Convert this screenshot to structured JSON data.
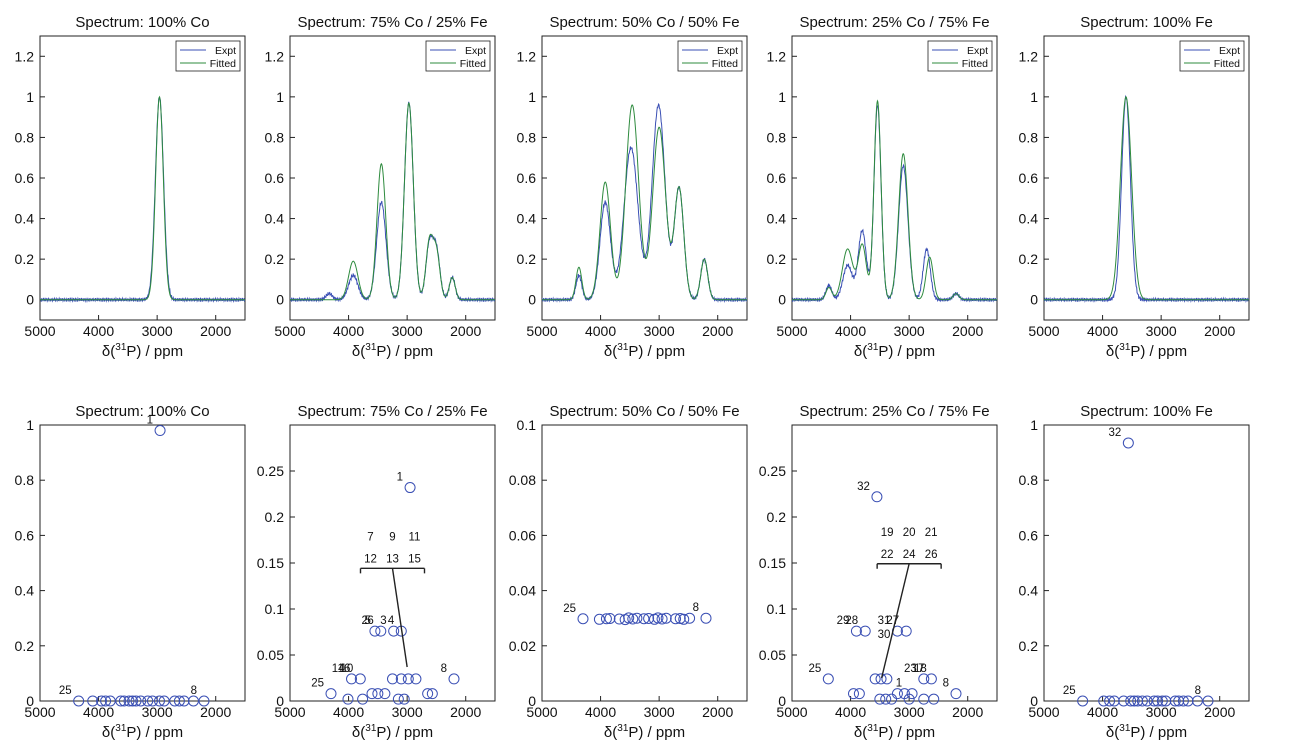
{
  "xlabel": {
    "pre": "δ(",
    "sup": "31",
    "post": "P) / ppm"
  },
  "chart_data": [
    {
      "type": "line",
      "title": "Spectrum: 100% Co",
      "xlim": [
        5000,
        1500
      ],
      "ylim": [
        -0.1,
        1.3
      ],
      "xticks": [
        5000,
        4000,
        3000,
        2000
      ],
      "yticks": [
        0,
        0.2,
        0.4,
        0.6,
        0.8,
        1,
        1.2
      ],
      "legend": [
        "Expt",
        "Fitted"
      ],
      "legend_position": "top-right",
      "series": [
        {
          "name": "Expt",
          "color": "#3a4fb4",
          "peaks": [
            [
              2960,
              1.0,
              70
            ]
          ]
        },
        {
          "name": "Fitted",
          "color": "#2e8b3e",
          "peaks": [
            [
              2960,
              1.0,
              66
            ]
          ]
        }
      ]
    },
    {
      "type": "line",
      "title": "Spectrum: 75% Co / 25% Fe",
      "xlim": [
        5000,
        1500
      ],
      "ylim": [
        -0.1,
        1.3
      ],
      "xticks": [
        5000,
        4000,
        3000,
        2000
      ],
      "yticks": [
        0,
        0.2,
        0.4,
        0.6,
        0.8,
        1,
        1.2
      ],
      "legend": [
        "Expt",
        "Fitted"
      ],
      "legend_position": "top-right",
      "series": [
        {
          "name": "Expt",
          "color": "#3a4fb4",
          "peaks": [
            [
              4330,
              0.03,
              55
            ],
            [
              3920,
              0.12,
              80
            ],
            [
              3440,
              0.48,
              80
            ],
            [
              2970,
              0.97,
              75
            ],
            [
              2620,
              0.27,
              60
            ],
            [
              2500,
              0.24,
              60
            ],
            [
              2230,
              0.11,
              50
            ]
          ]
        },
        {
          "name": "Fitted",
          "color": "#2e8b3e",
          "peaks": [
            [
              3920,
              0.19,
              80
            ],
            [
              3440,
              0.67,
              75
            ],
            [
              2970,
              0.97,
              75
            ],
            [
              2620,
              0.28,
              60
            ],
            [
              2500,
              0.23,
              60
            ],
            [
              2230,
              0.11,
              50
            ]
          ]
        }
      ]
    },
    {
      "type": "line",
      "title": "Spectrum: 50% Co / 50% Fe",
      "xlim": [
        5000,
        1500
      ],
      "ylim": [
        -0.1,
        1.3
      ],
      "xticks": [
        5000,
        4000,
        3000,
        2000
      ],
      "yticks": [
        0,
        0.2,
        0.4,
        0.6,
        0.8,
        1,
        1.2
      ],
      "legend": [
        "Expt",
        "Fitted"
      ],
      "legend_position": "top-right",
      "series": [
        {
          "name": "Expt",
          "color": "#3a4fb4",
          "peaks": [
            [
              4370,
              0.12,
              50
            ],
            [
              3920,
              0.48,
              90
            ],
            [
              3480,
              0.75,
              120
            ],
            [
              3010,
              0.96,
              110
            ],
            [
              2660,
              0.55,
              80
            ],
            [
              2230,
              0.2,
              60
            ]
          ]
        },
        {
          "name": "Fitted",
          "color": "#2e8b3e",
          "peaks": [
            [
              4370,
              0.16,
              50
            ],
            [
              3920,
              0.58,
              90
            ],
            [
              3460,
              0.96,
              110
            ],
            [
              3000,
              0.85,
              110
            ],
            [
              2660,
              0.55,
              80
            ],
            [
              2230,
              0.2,
              60
            ]
          ]
        }
      ]
    },
    {
      "type": "line",
      "title": "Spectrum: 25% Co / 75% Fe",
      "xlim": [
        5000,
        1500
      ],
      "ylim": [
        -0.1,
        1.3
      ],
      "xticks": [
        5000,
        4000,
        3000,
        2000
      ],
      "yticks": [
        0,
        0.2,
        0.4,
        0.6,
        0.8,
        1,
        1.2
      ],
      "legend": [
        "Expt",
        "Fitted"
      ],
      "legend_position": "top-right",
      "series": [
        {
          "name": "Expt",
          "color": "#3a4fb4",
          "peaks": [
            [
              4370,
              0.07,
              50
            ],
            [
              4050,
              0.17,
              80
            ],
            [
              3800,
              0.34,
              70
            ],
            [
              3540,
              0.96,
              60
            ],
            [
              3100,
              0.66,
              80
            ],
            [
              2700,
              0.25,
              60
            ],
            [
              2200,
              0.03,
              50
            ]
          ]
        },
        {
          "name": "Fitted",
          "color": "#2e8b3e",
          "peaks": [
            [
              4370,
              0.06,
              50
            ],
            [
              4050,
              0.25,
              90
            ],
            [
              3800,
              0.27,
              70
            ],
            [
              3540,
              0.98,
              60
            ],
            [
              3100,
              0.72,
              80
            ],
            [
              2650,
              0.21,
              60
            ],
            [
              2200,
              0.03,
              50
            ]
          ]
        }
      ]
    },
    {
      "type": "line",
      "title": "Spectrum: 100% Fe",
      "xlim": [
        5000,
        1500
      ],
      "ylim": [
        -0.1,
        1.3
      ],
      "xticks": [
        5000,
        4000,
        3000,
        2000
      ],
      "yticks": [
        0,
        0.2,
        0.4,
        0.6,
        0.8,
        1,
        1.2
      ],
      "legend": [
        "Expt",
        "Fitted"
      ],
      "legend_position": "top-right",
      "series": [
        {
          "name": "Expt",
          "color": "#3a4fb4",
          "peaks": [
            [
              3600,
              1.0,
              75
            ]
          ]
        },
        {
          "name": "Fitted",
          "color": "#2e8b3e",
          "peaks": [
            [
              3600,
              1.0,
              95
            ]
          ]
        }
      ]
    },
    {
      "type": "scatter",
      "title": "Spectrum: 100% Co",
      "xlim": [
        5000,
        1500
      ],
      "ylim": [
        0,
        1
      ],
      "xticks": [
        5000,
        4000,
        3000,
        2000
      ],
      "yticks": [
        0,
        0.2,
        0.4,
        0.6,
        0.8,
        1
      ],
      "points": [
        [
          4340,
          0
        ],
        [
          4100,
          0
        ],
        [
          3950,
          0
        ],
        [
          3880,
          0
        ],
        [
          3800,
          0
        ],
        [
          3620,
          0
        ],
        [
          3560,
          0
        ],
        [
          3480,
          0
        ],
        [
          3420,
          0
        ],
        [
          3360,
          0
        ],
        [
          3280,
          0
        ],
        [
          3160,
          0
        ],
        [
          3080,
          0
        ],
        [
          2960,
          0
        ],
        [
          2880,
          0
        ],
        [
          2700,
          0
        ],
        [
          2620,
          0
        ],
        [
          2540,
          0
        ],
        [
          2380,
          0
        ],
        [
          2200,
          0
        ],
        [
          2950,
          0.98
        ]
      ],
      "labels": [
        {
          "text": "25",
          "x": 4340,
          "y": 0
        },
        {
          "text": "8",
          "x": 2200,
          "y": 0
        },
        {
          "text": "1",
          "x": 2950,
          "y": 0.98
        }
      ]
    },
    {
      "type": "scatter",
      "title": "Spectrum: 75% Co / 25% Fe",
      "xlim": [
        5000,
        1500
      ],
      "ylim": [
        0,
        0.3
      ],
      "xticks": [
        5000,
        4000,
        3000,
        2000
      ],
      "yticks": [
        0,
        0.05,
        0.1,
        0.15,
        0.2,
        0.25
      ],
      "points": [
        [
          4300,
          0.008
        ],
        [
          4010,
          0.002
        ],
        [
          3950,
          0.024
        ],
        [
          3800,
          0.024
        ],
        [
          3760,
          0.002
        ],
        [
          3550,
          0.076
        ],
        [
          3450,
          0.076
        ],
        [
          3230,
          0.076
        ],
        [
          3100,
          0.076
        ],
        [
          2950,
          0.232
        ],
        [
          3600,
          0.008
        ],
        [
          3500,
          0.008
        ],
        [
          3380,
          0.008
        ],
        [
          3150,
          0.002
        ],
        [
          3050,
          0.002
        ],
        [
          3250,
          0.024
        ],
        [
          3100,
          0.024
        ],
        [
          2980,
          0.024
        ],
        [
          2850,
          0.024
        ],
        [
          2650,
          0.008
        ],
        [
          2570,
          0.008
        ],
        [
          2200,
          0.024
        ]
      ],
      "labels": [
        {
          "text": "25",
          "x": 4300,
          "y": 0.008
        },
        {
          "text": "14",
          "x": 3950,
          "y": 0.024
        },
        {
          "text": "16",
          "x": 3850,
          "y": 0.024
        },
        {
          "text": "10",
          "x": 3800,
          "y": 0.024
        },
        {
          "text": "2",
          "x": 3550,
          "y": 0.076
        },
        {
          "text": "5",
          "x": 3500,
          "y": 0.076
        },
        {
          "text": "6",
          "x": 3450,
          "y": 0.076
        },
        {
          "text": "3",
          "x": 3230,
          "y": 0.076
        },
        {
          "text": "4",
          "x": 3100,
          "y": 0.076
        },
        {
          "text": "1",
          "x": 2950,
          "y": 0.232
        },
        {
          "text": "8",
          "x": 2200,
          "y": 0.024
        }
      ],
      "groups": [
        {
          "rows": [
            [
              "7",
              "9",
              "11"
            ],
            [
              "12",
              "13",
              "15"
            ]
          ],
          "anchor": {
            "x": 3250,
            "y": 0.142
          },
          "target": {
            "x": 3000,
            "y": 0.037
          }
        }
      ]
    },
    {
      "type": "scatter",
      "title": "Spectrum: 50% Co / 50% Fe",
      "xlim": [
        5000,
        1500
      ],
      "ylim": [
        0,
        0.1
      ],
      "xticks": [
        5000,
        4000,
        3000,
        2000
      ],
      "yticks": [
        0,
        0.02,
        0.04,
        0.06,
        0.08,
        0.1
      ],
      "points": [
        [
          4300,
          0.0298
        ],
        [
          4020,
          0.0296
        ],
        [
          3900,
          0.0298
        ],
        [
          3840,
          0.0299
        ],
        [
          3680,
          0.0297
        ],
        [
          3580,
          0.0295
        ],
        [
          3520,
          0.0301
        ],
        [
          3450,
          0.0297
        ],
        [
          3380,
          0.03
        ],
        [
          3260,
          0.0298
        ],
        [
          3180,
          0.0299
        ],
        [
          3080,
          0.0296
        ],
        [
          3020,
          0.0301
        ],
        [
          2950,
          0.0297
        ],
        [
          2880,
          0.03
        ],
        [
          2720,
          0.0298
        ],
        [
          2640,
          0.0299
        ],
        [
          2580,
          0.0296
        ],
        [
          2480,
          0.03
        ],
        [
          2200,
          0.03
        ]
      ],
      "labels": [
        {
          "text": "25",
          "x": 4300,
          "y": 0.0298
        },
        {
          "text": "8",
          "x": 2200,
          "y": 0.03
        }
      ]
    },
    {
      "type": "scatter",
      "title": "Spectrum: 25% Co / 75% Fe",
      "xlim": [
        5000,
        1500
      ],
      "ylim": [
        0,
        0.3
      ],
      "xticks": [
        5000,
        4000,
        3000,
        2000
      ],
      "yticks": [
        0,
        0.05,
        0.1,
        0.15,
        0.2,
        0.25
      ],
      "points": [
        [
          4380,
          0.024
        ],
        [
          3900,
          0.076
        ],
        [
          3750,
          0.076
        ],
        [
          3200,
          0.076
        ],
        [
          3050,
          0.076
        ],
        [
          3550,
          0.222
        ],
        [
          3950,
          0.008
        ],
        [
          3850,
          0.008
        ],
        [
          3580,
          0.024
        ],
        [
          3480,
          0.024
        ],
        [
          3380,
          0.024
        ],
        [
          3500,
          0.002
        ],
        [
          3400,
          0.002
        ],
        [
          3300,
          0.002
        ],
        [
          3200,
          0.008
        ],
        [
          3080,
          0.008
        ],
        [
          2950,
          0.008
        ],
        [
          3000,
          0.002
        ],
        [
          2750,
          0.024
        ],
        [
          2620,
          0.024
        ],
        [
          2750,
          0.002
        ],
        [
          2580,
          0.002
        ],
        [
          2200,
          0.008
        ]
      ],
      "labels": [
        {
          "text": "25",
          "x": 4380,
          "y": 0.024
        },
        {
          "text": "29",
          "x": 3900,
          "y": 0.076
        },
        {
          "text": "28",
          "x": 3750,
          "y": 0.076
        },
        {
          "text": "31",
          "x": 3200,
          "y": 0.076
        },
        {
          "text": "30",
          "x": 3200,
          "y": 0.076
        },
        {
          "text": "27",
          "x": 3050,
          "y": 0.076
        },
        {
          "text": "32",
          "x": 3550,
          "y": 0.222
        },
        {
          "text": "23",
          "x": 2750,
          "y": 0.024
        },
        {
          "text": "17",
          "x": 2620,
          "y": 0.024
        },
        {
          "text": "18",
          "x": 2580,
          "y": 0.024
        },
        {
          "text": "1",
          "x": 3000,
          "y": 0.008
        },
        {
          "text": "8",
          "x": 2200,
          "y": 0.008
        }
      ],
      "groups": [
        {
          "rows": [
            [
              "19",
              "20",
              "21"
            ],
            [
              "22",
              "24",
              "26"
            ]
          ],
          "anchor": {
            "x": 3000,
            "y": 0.147
          },
          "target": {
            "x": 3470,
            "y": 0.025
          }
        }
      ]
    },
    {
      "type": "scatter",
      "title": "Spectrum: 100% Fe",
      "xlim": [
        5000,
        1500
      ],
      "ylim": [
        0,
        1
      ],
      "xticks": [
        5000,
        4000,
        3000,
        2000
      ],
      "yticks": [
        0,
        0.2,
        0.4,
        0.6,
        0.8,
        1
      ],
      "points": [
        [
          4340,
          0
        ],
        [
          3980,
          0
        ],
        [
          3880,
          0
        ],
        [
          3800,
          0
        ],
        [
          3640,
          0
        ],
        [
          3520,
          0
        ],
        [
          3460,
          0
        ],
        [
          3400,
          0
        ],
        [
          3320,
          0
        ],
        [
          3240,
          0
        ],
        [
          3120,
          0
        ],
        [
          3060,
          0
        ],
        [
          2980,
          0
        ],
        [
          2920,
          0
        ],
        [
          2760,
          0
        ],
        [
          2700,
          0
        ],
        [
          2620,
          0
        ],
        [
          2540,
          0
        ],
        [
          2380,
          0
        ],
        [
          2200,
          0
        ],
        [
          3560,
          0.935
        ]
      ],
      "labels": [
        {
          "text": "25",
          "x": 4340,
          "y": 0
        },
        {
          "text": "8",
          "x": 2200,
          "y": 0
        },
        {
          "text": "32",
          "x": 3560,
          "y": 0.935
        }
      ]
    }
  ]
}
